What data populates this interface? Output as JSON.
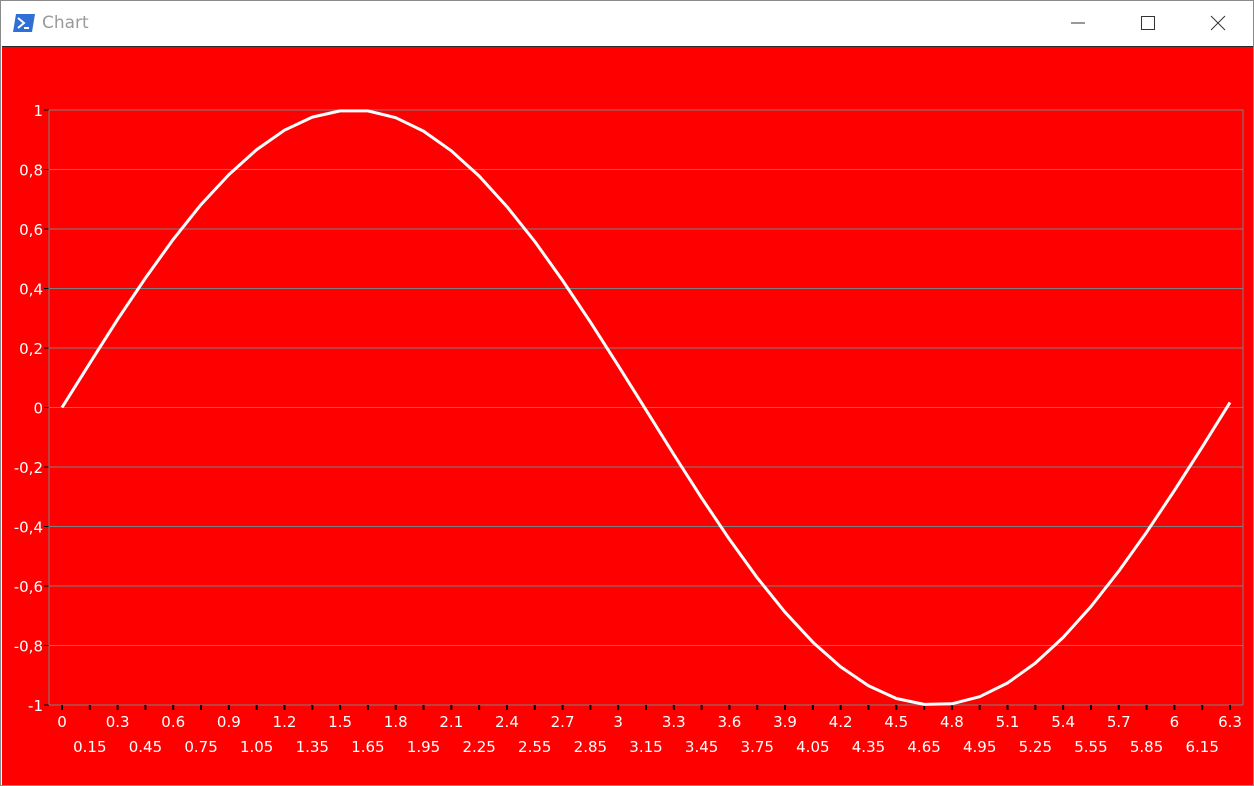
{
  "window": {
    "title": "Chart",
    "icons": {
      "app": "powershell-icon",
      "minimize": "minimize-icon",
      "maximize": "maximize-icon",
      "close": "close-icon"
    }
  },
  "colors": {
    "background": "#ff0000",
    "line": "#ffffff",
    "grid": "#808080",
    "text": "#ffffff"
  },
  "chart_data": {
    "type": "line",
    "title": "",
    "xlabel": "",
    "ylabel": "",
    "function_shape": "sine",
    "grid": "horizontal",
    "legend": "none",
    "ylim": [
      -1,
      1
    ],
    "xlim": [
      0,
      6.3
    ],
    "y_ticks": [
      1,
      0.8,
      0.6,
      0.4,
      0.2,
      0,
      -0.2,
      -0.4,
      -0.6,
      -0.8,
      -1
    ],
    "y_tick_labels": [
      "1",
      "0,8",
      "0,6",
      "0,4",
      "0,2",
      "0",
      "-0,2",
      "-0,4",
      "-0,6",
      "-0,8",
      "-1"
    ],
    "x_ticks": [
      0,
      0.15,
      0.3,
      0.45,
      0.6,
      0.75,
      0.9,
      1.05,
      1.2,
      1.35,
      1.5,
      1.65,
      1.8,
      1.95,
      2.1,
      2.25,
      2.4,
      2.55,
      2.7,
      2.85,
      3,
      3.15,
      3.3,
      3.45,
      3.6,
      3.75,
      3.9,
      4.05,
      4.2,
      4.35,
      4.5,
      4.65,
      4.8,
      4.95,
      5.1,
      5.25,
      5.4,
      5.55,
      5.7,
      5.85,
      6,
      6.15,
      6.3
    ],
    "x_tick_labels": [
      "0",
      "0.15",
      "0.3",
      "0.45",
      "0.6",
      "0.75",
      "0.9",
      "1.05",
      "1.2",
      "1.35",
      "1.5",
      "1.65",
      "1.8",
      "1.95",
      "2.1",
      "2.25",
      "2.4",
      "2.55",
      "2.7",
      "2.85",
      "3",
      "3.15",
      "3.3",
      "3.45",
      "3.6",
      "3.75",
      "3.9",
      "4.05",
      "4.2",
      "4.35",
      "4.5",
      "4.65",
      "4.8",
      "4.95",
      "5.1",
      "5.25",
      "5.4",
      "5.55",
      "5.7",
      "5.85",
      "6",
      "6.15",
      "6.3"
    ],
    "series": [
      {
        "x": [
          0,
          0.15,
          0.3,
          0.45,
          0.6,
          0.75,
          0.9,
          1.05,
          1.2,
          1.35,
          1.5,
          1.65,
          1.8,
          1.95,
          2.1,
          2.25,
          2.4,
          2.55,
          2.7,
          2.85,
          3,
          3.15,
          3.3,
          3.45,
          3.6,
          3.75,
          3.9,
          4.05,
          4.2,
          4.35,
          4.5,
          4.65,
          4.8,
          4.95,
          5.1,
          5.25,
          5.4,
          5.55,
          5.7,
          5.85,
          6,
          6.15,
          6.3
        ],
        "values": [
          0,
          0.149,
          0.296,
          0.435,
          0.565,
          0.682,
          0.783,
          0.867,
          0.932,
          0.976,
          0.997,
          0.997,
          0.974,
          0.929,
          0.863,
          0.778,
          0.675,
          0.558,
          0.427,
          0.287,
          0.141,
          -0.008,
          -0.158,
          -0.304,
          -0.443,
          -0.572,
          -0.688,
          -0.789,
          -0.872,
          -0.935,
          -0.978,
          -0.998,
          -0.996,
          -0.972,
          -0.926,
          -0.859,
          -0.773,
          -0.669,
          -0.55,
          -0.419,
          -0.279,
          -0.133,
          0.017
        ]
      }
    ]
  }
}
